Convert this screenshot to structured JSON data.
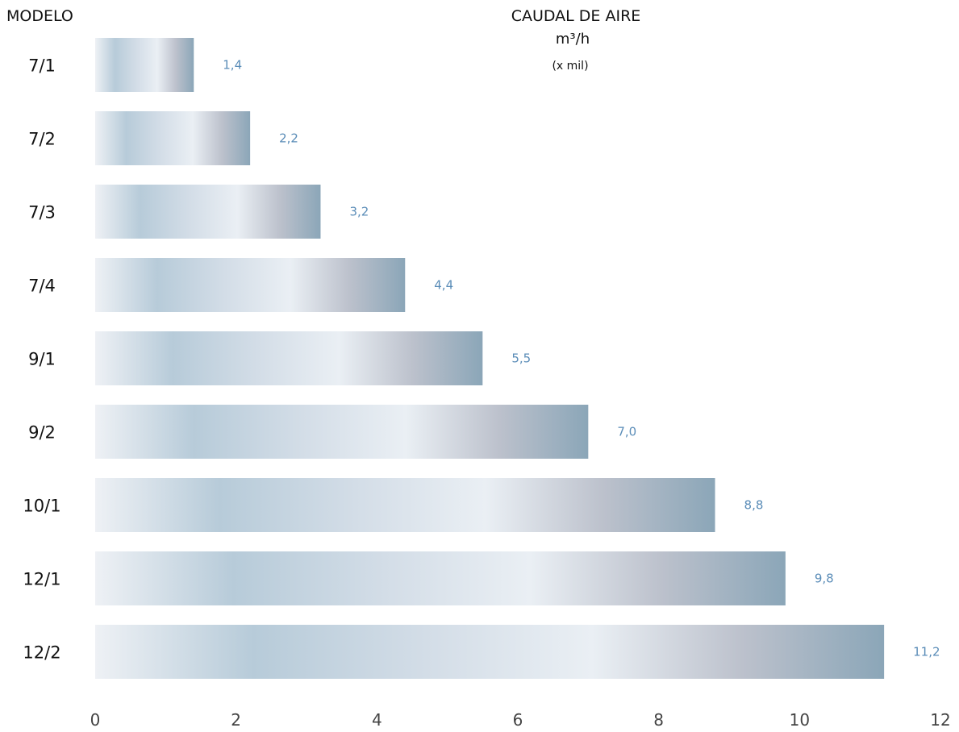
{
  "chart_data": {
    "type": "bar",
    "orientation": "horizontal",
    "category_axis_label": "MODELO",
    "value_axis_title": "CAUDAL DE AIRE",
    "value_axis_unit": "m³/h",
    "value_axis_unit_note": "(x mil)",
    "categories": [
      "7/1",
      "7/2",
      "7/3",
      "7/4",
      "9/1",
      "9/2",
      "10/1",
      "12/1",
      "12/2"
    ],
    "values": [
      1.4,
      2.2,
      3.2,
      4.4,
      5.5,
      7.0,
      8.8,
      9.8,
      11.2
    ],
    "value_labels": [
      "1,4",
      "2,2",
      "3,2",
      "4,4",
      "5,5",
      "7,0",
      "8,8",
      "9,8",
      "11,2"
    ],
    "xlim": [
      0,
      12
    ],
    "xticks": [
      0,
      2,
      4,
      6,
      8,
      10,
      12
    ],
    "grid": false,
    "bar_color": "#b8cad8",
    "label_color": "#5b8db8"
  }
}
